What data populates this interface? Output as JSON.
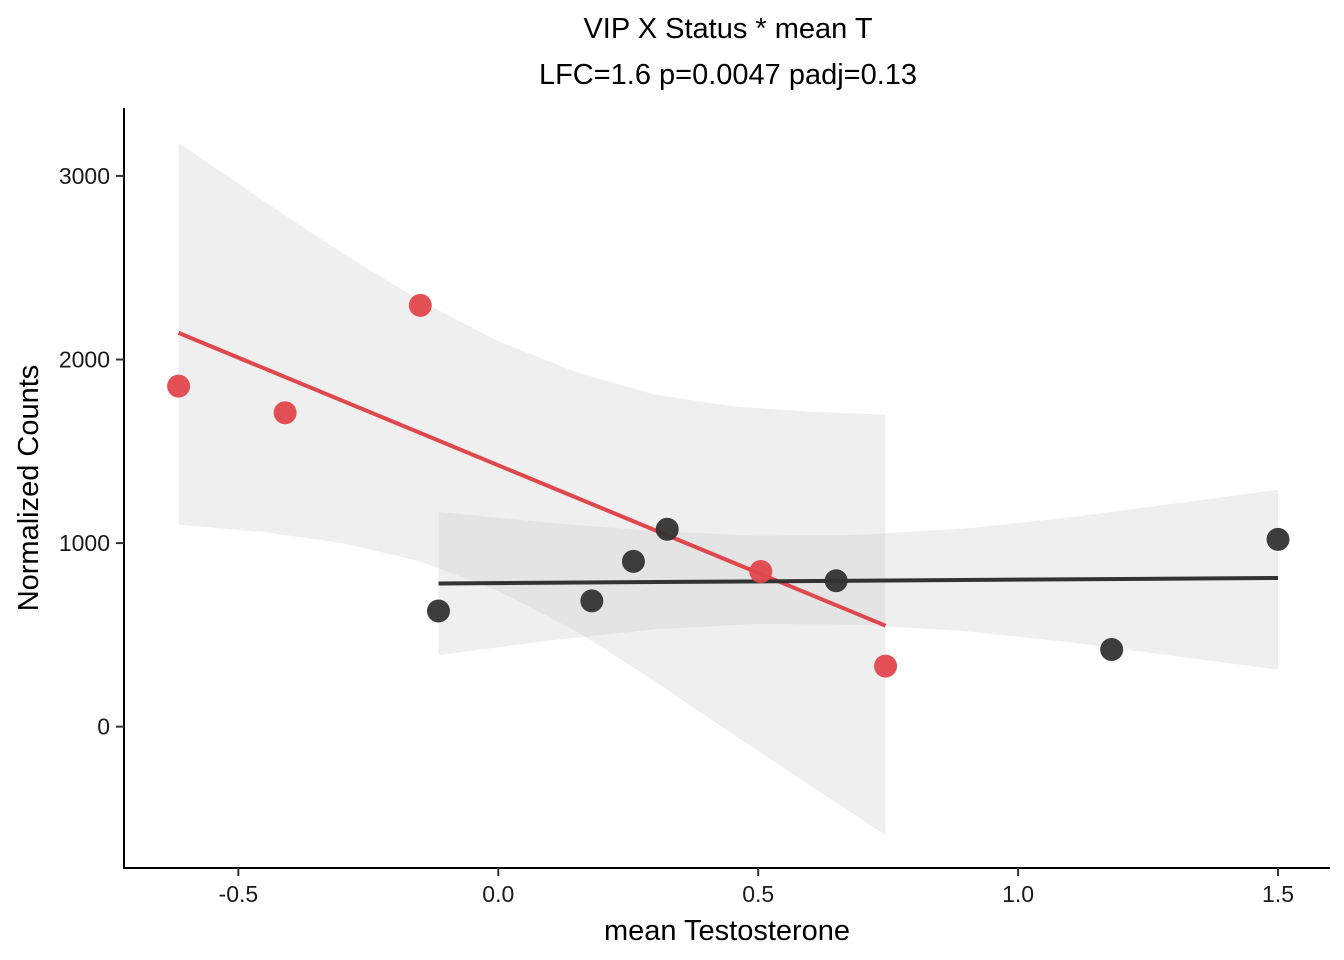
{
  "chart_data": {
    "type": "scatter",
    "title": "VIP X Status * mean T",
    "subtitle": "LFC=1.6 p=0.0047 padj=0.13",
    "xlabel": "mean Testosterone",
    "ylabel": "Normalized Counts",
    "xlim": [
      -0.72,
      1.6
    ],
    "ylim": [
      -770,
      3370
    ],
    "x_ticks": [
      -0.5,
      0.0,
      0.5,
      1.0,
      1.5
    ],
    "x_tick_labels": [
      "-0.5",
      "0.0",
      "0.5",
      "1.0",
      "1.5"
    ],
    "y_ticks": [
      0,
      1000,
      2000,
      3000
    ],
    "y_tick_labels": [
      "0",
      "1000",
      "2000",
      "3000"
    ],
    "grid": false,
    "legend": "none",
    "series": [
      {
        "color": "#e0474c",
        "points": [
          {
            "x": -0.615,
            "y": 1855
          },
          {
            "x": -0.41,
            "y": 1710
          },
          {
            "x": -0.15,
            "y": 2295
          },
          {
            "x": 0.505,
            "y": 845
          },
          {
            "x": 0.745,
            "y": 330
          }
        ],
        "fit_line": [
          {
            "x": -0.615,
            "y": 2145
          },
          {
            "x": 0.745,
            "y": 550
          }
        ],
        "confidence_band": [
          {
            "x": -0.615,
            "lower": 1100,
            "upper": 3180
          },
          {
            "x": -0.45,
            "lower": 1060,
            "upper": 2860
          },
          {
            "x": -0.3,
            "lower": 1000,
            "upper": 2580
          },
          {
            "x": -0.15,
            "lower": 900,
            "upper": 2320
          },
          {
            "x": 0.0,
            "lower": 740,
            "upper": 2100
          },
          {
            "x": 0.15,
            "lower": 520,
            "upper": 1930
          },
          {
            "x": 0.3,
            "lower": 250,
            "upper": 1810
          },
          {
            "x": 0.45,
            "lower": -40,
            "upper": 1745
          },
          {
            "x": 0.6,
            "lower": -320,
            "upper": 1715
          },
          {
            "x": 0.745,
            "lower": -590,
            "upper": 1700
          }
        ]
      },
      {
        "color": "#333333",
        "points": [
          {
            "x": -0.115,
            "y": 630
          },
          {
            "x": 0.18,
            "y": 685
          },
          {
            "x": 0.26,
            "y": 900
          },
          {
            "x": 0.325,
            "y": 1075
          },
          {
            "x": 0.65,
            "y": 795
          },
          {
            "x": 1.18,
            "y": 420
          },
          {
            "x": 1.5,
            "y": 1020
          }
        ],
        "fit_line": [
          {
            "x": -0.115,
            "y": 780
          },
          {
            "x": 1.5,
            "y": 810
          }
        ],
        "confidence_band": [
          {
            "x": -0.115,
            "lower": 390,
            "upper": 1170
          },
          {
            "x": 0.1,
            "lower": 470,
            "upper": 1110
          },
          {
            "x": 0.3,
            "lower": 530,
            "upper": 1065
          },
          {
            "x": 0.5,
            "lower": 560,
            "upper": 1040
          },
          {
            "x": 0.7,
            "lower": 555,
            "upper": 1045
          },
          {
            "x": 0.9,
            "lower": 520,
            "upper": 1080
          },
          {
            "x": 1.1,
            "lower": 460,
            "upper": 1140
          },
          {
            "x": 1.3,
            "lower": 385,
            "upper": 1215
          },
          {
            "x": 1.5,
            "lower": 310,
            "upper": 1290
          }
        ]
      }
    ]
  }
}
